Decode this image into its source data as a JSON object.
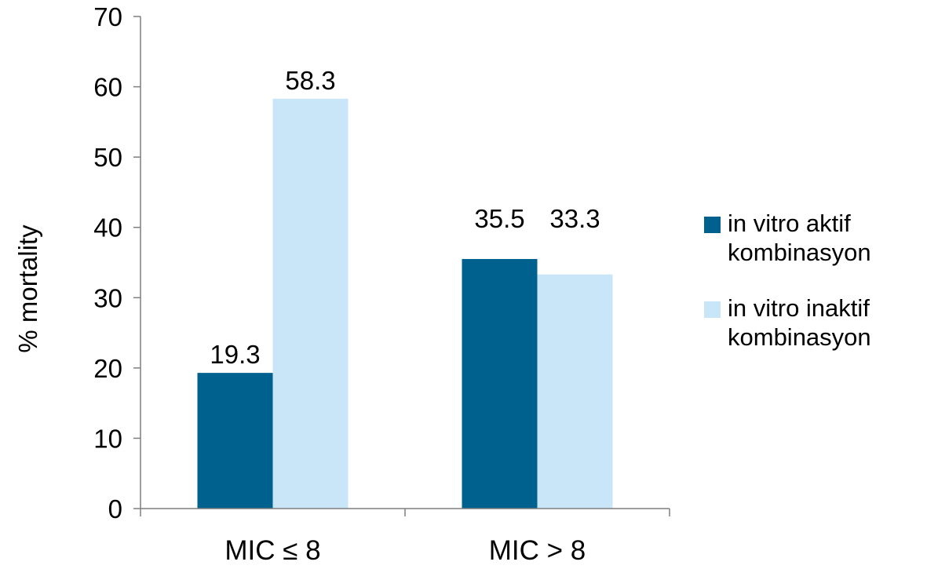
{
  "chart_data": {
    "type": "bar",
    "title": "",
    "xlabel": "",
    "ylabel": "% mortality",
    "ylim": [
      0,
      70
    ],
    "ytick_step": 10,
    "grid": false,
    "legend_position": "right",
    "categories": [
      "MIC ≤ 8",
      "MIC > 8"
    ],
    "series": [
      {
        "name": "in vitro aktif kombinasyon",
        "legend_lines": [
          "in vitro aktif",
          "kombinasyon"
        ],
        "color": "#00618F",
        "values": [
          19.3,
          35.5
        ]
      },
      {
        "name": "in vitro inaktif kombinasyon",
        "legend_lines": [
          "in vitro inaktif",
          "kombinasyon"
        ],
        "color": "#C8E6F8",
        "values": [
          58.3,
          33.3
        ]
      }
    ],
    "data_labels": [
      [
        "19.3",
        "35.5"
      ],
      [
        "58.3",
        "33.3"
      ]
    ]
  }
}
